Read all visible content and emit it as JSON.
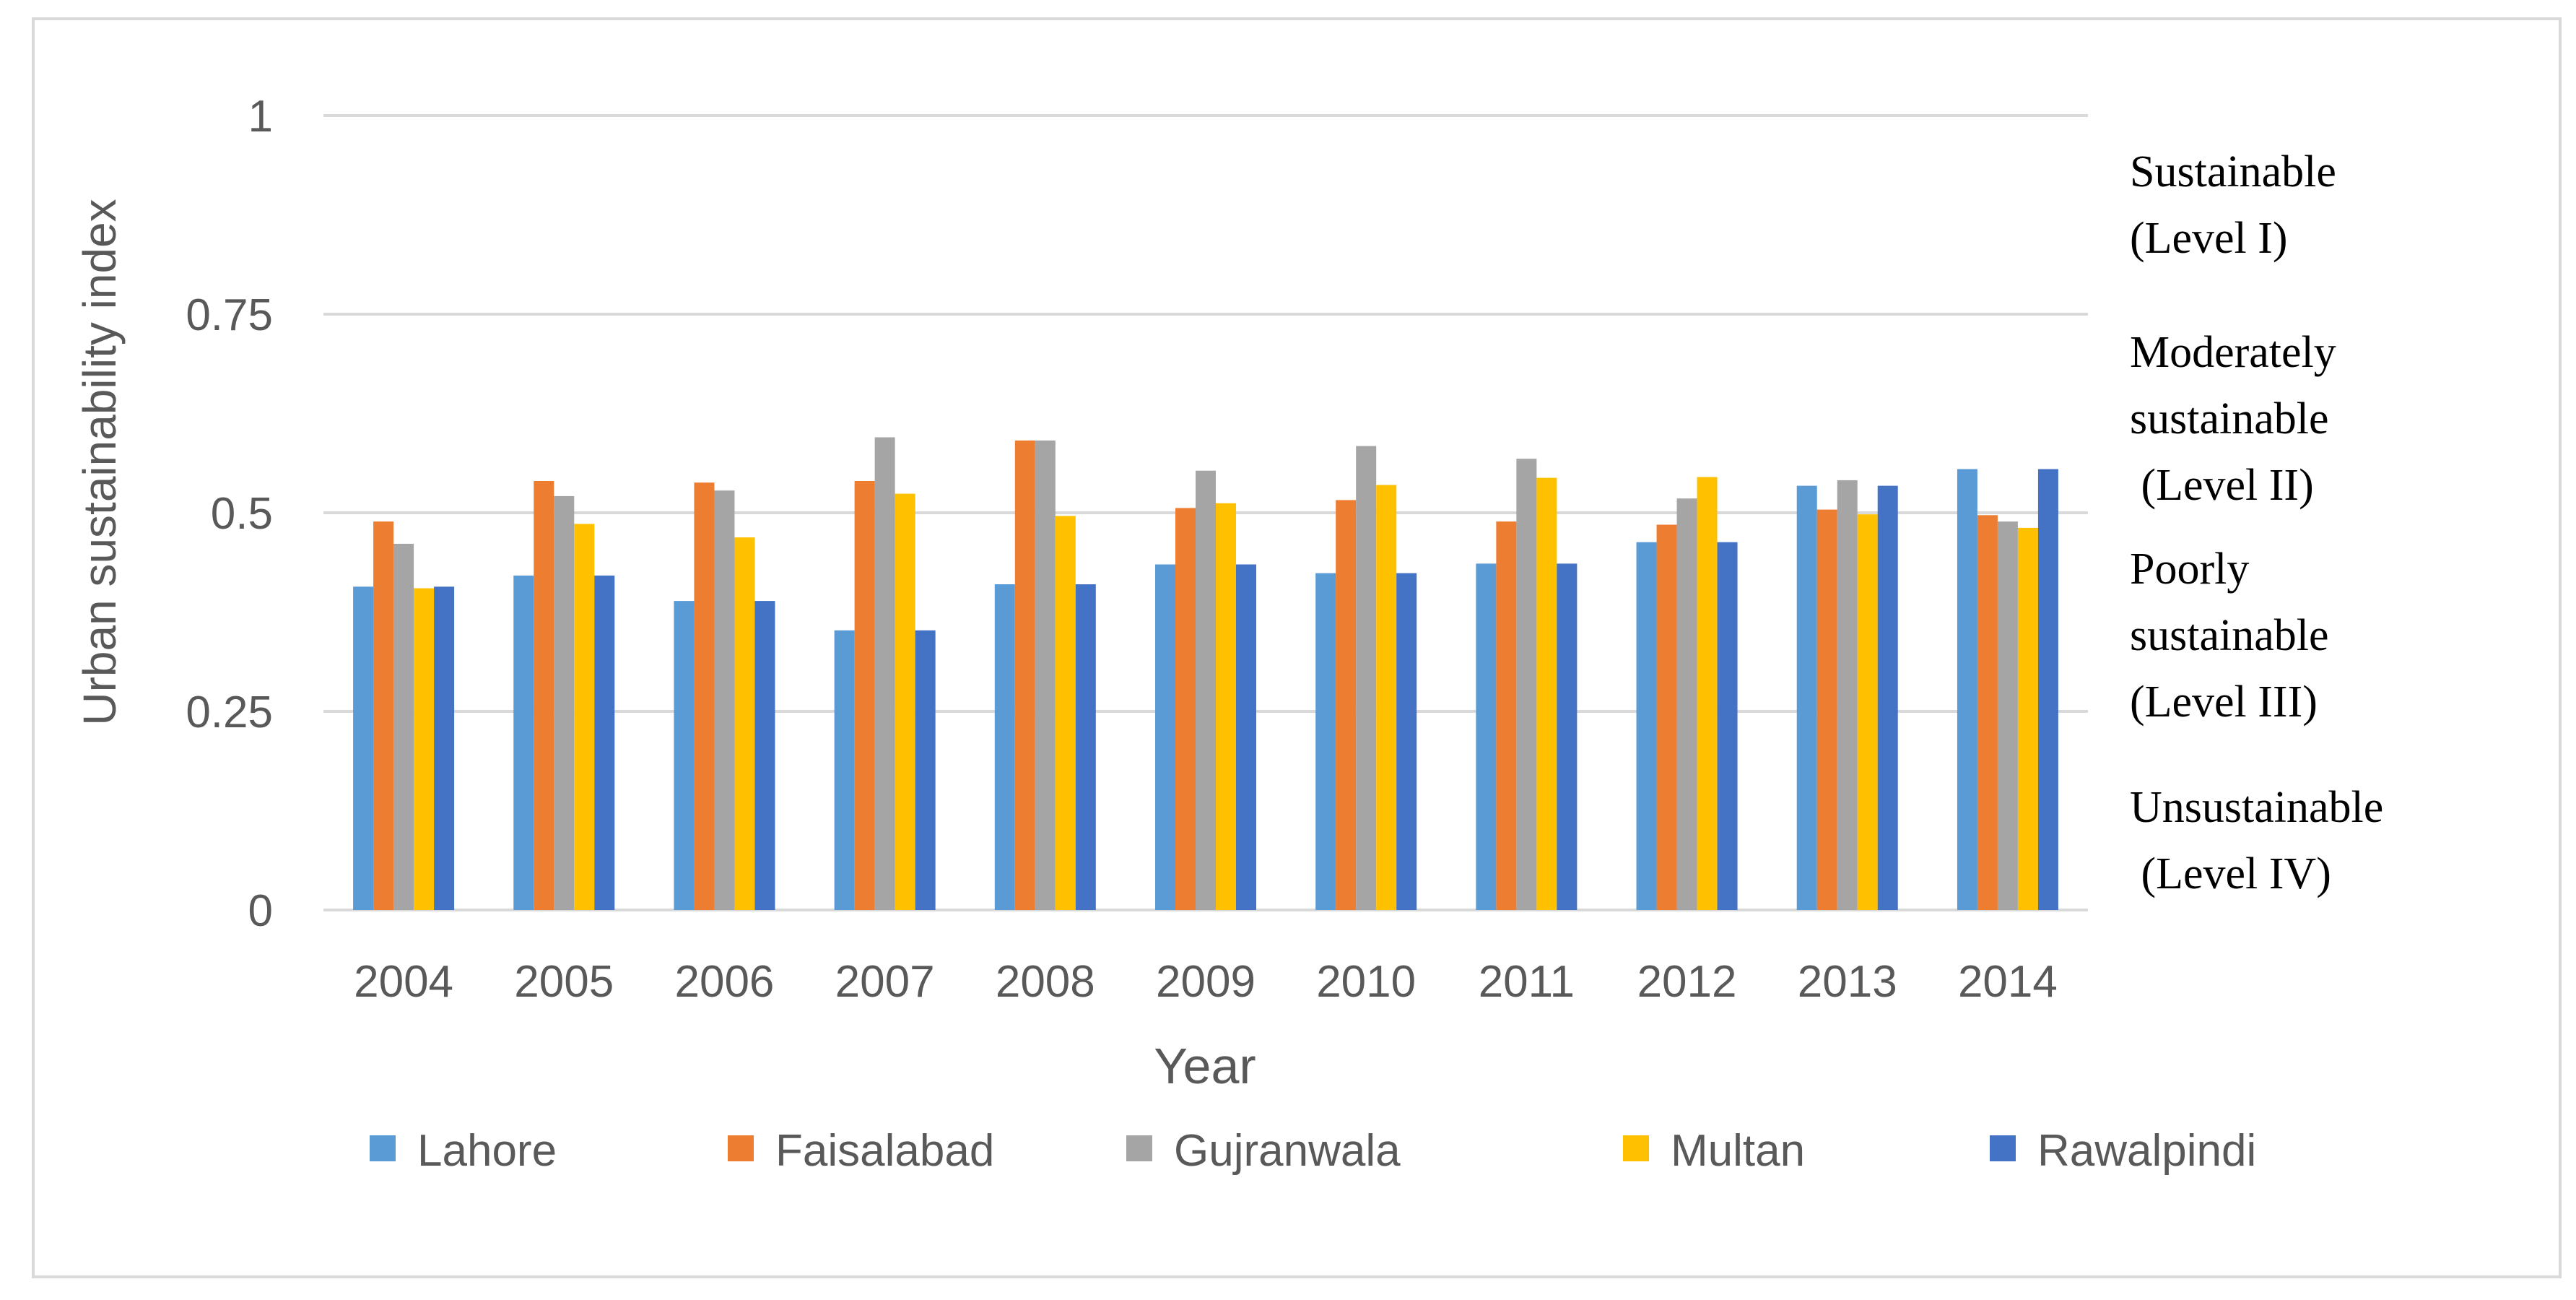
{
  "chart_data": {
    "type": "bar",
    "title": "",
    "xlabel": "Year",
    "ylabel": "Urban sustainability index",
    "ylim": [
      0,
      1
    ],
    "yticks": [
      0,
      0.25,
      0.5,
      0.75,
      1
    ],
    "ytick_labels": [
      "0",
      "0.25",
      "0.5",
      "0.75",
      "1"
    ],
    "grid": true,
    "legend_position": "bottom",
    "categories": [
      "2004",
      "2005",
      "2006",
      "2007",
      "2008",
      "2009",
      "2010",
      "2011",
      "2012",
      "2013",
      "2014"
    ],
    "series": [
      {
        "name": "Lahore",
        "color": "#5B9BD5",
        "values": [
          0.407,
          0.421,
          0.389,
          0.352,
          0.41,
          0.435,
          0.424,
          0.436,
          0.463,
          0.534,
          0.555
        ]
      },
      {
        "name": "Faisal­abad",
        "color": "#ED7D31",
        "values": [
          0.489,
          0.54,
          0.538,
          0.54,
          0.591,
          0.506,
          0.516,
          0.489,
          0.485,
          0.504,
          0.497
        ]
      },
      {
        "name": "Gujranwala",
        "color": "#A5A5A5",
        "values": [
          0.461,
          0.521,
          0.528,
          0.595,
          0.591,
          0.553,
          0.584,
          0.568,
          0.518,
          0.541,
          0.489
        ]
      },
      {
        "name": "Multan",
        "color": "#FFC000",
        "values": [
          0.405,
          0.486,
          0.469,
          0.524,
          0.496,
          0.512,
          0.535,
          0.544,
          0.545,
          0.498,
          0.481
        ]
      },
      {
        "name": "Rawalpindi",
        "color": "#4472C4",
        "values": [
          0.407,
          0.421,
          0.389,
          0.352,
          0.41,
          0.435,
          0.424,
          0.436,
          0.463,
          0.534,
          0.555
        ]
      }
    ],
    "annotations": [
      {
        "id": "level-1",
        "lines": [
          "Sustainable",
          "(Level I)"
        ]
      },
      {
        "id": "level-2",
        "lines": [
          "Moderately",
          "sustainable",
          " (Level II)"
        ]
      },
      {
        "id": "level-3",
        "lines": [
          "Poorly",
          "sustainable",
          "(Level III)"
        ]
      },
      {
        "id": "level-4",
        "lines": [
          "Unsustainable",
          " (Level IV)"
        ]
      }
    ],
    "colors": {
      "gridline": "#D9D9D9",
      "axis_text": "#595959",
      "frame": "#D9D9D9",
      "annotation_text": "#000000"
    }
  }
}
